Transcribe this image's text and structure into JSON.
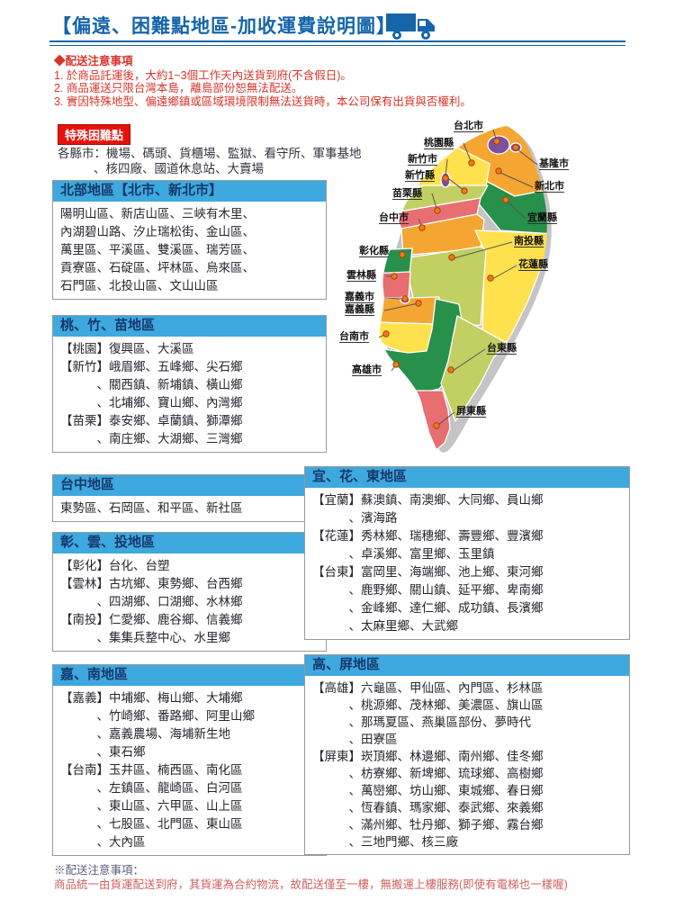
{
  "header": {
    "title": "【偏遠、困難點地區-加收運費說明圖】"
  },
  "notes": {
    "heading": "◆配送注意事項",
    "items": [
      "1. 於商品託運後，大約1~3個工作天內送貨到府(不含假日)。",
      "2. 商品運送只限台灣本島，離島部份恕無法配送。",
      "3. 實因特殊地型、偏遠鄉鎮或區域環境限制無法送貨時，本公司保有出貨與否權利。"
    ]
  },
  "special": {
    "badge": "特殊困難點",
    "line1": "各縣市：機場、碼頭、貨櫃場、監獄、看守所、軍事基地",
    "line2": "、核四廠、國道休息站、大賣場"
  },
  "boxes": [
    {
      "title": "北部地區【北市、新北市】",
      "lines": [
        "陽明山區、新店山區、三峽有木里、",
        "內湖碧山路、汐止瑞松街、金山區、",
        "萬里區、平溪區、雙溪區、瑞芳區、",
        "貢寮區、石碇區、坪林區、烏來區、",
        "石門區、北投山區、文山山區"
      ]
    },
    {
      "title": "桃、竹、苗地區",
      "lines": [
        "【桃園】復興區、大溪區",
        "【新竹】峨眉鄉、五峰鄉、尖石鄉",
        "　　　、關西鎮、新埔鎮、橫山鄉",
        "　　　、北埔鄉、寶山鄉、內灣鄉",
        "【苗栗】泰安鄉、卓蘭鎮、獅潭鄉",
        "　　　、南庄鄉、大湖鄉、三灣鄉"
      ]
    },
    {
      "title": "台中地區",
      "lines": [
        "東勢區、石岡區、和平區、新社區"
      ]
    },
    {
      "title": "彰、雲、投地區",
      "lines": [
        "【彰化】台化、台塑",
        "【雲林】古坑鄉、東勢鄉、台西鄉",
        "　　　、四湖鄉、口湖鄉、水林鄉",
        "【南投】仁愛鄉、鹿谷鄉、信義鄉",
        "　　　、集集兵整中心、水里鄉"
      ]
    },
    {
      "title": "嘉、南地區",
      "lines": [
        "【嘉義】中埔鄉、梅山鄉、大埔鄉",
        "　　　、竹崎鄉、番路鄉、阿里山鄉",
        "　　　、嘉義農場、海埔新生地",
        "　　　、東石鄉",
        "【台南】玉井區、楠西區、南化區",
        "　　　、左鎮區、龍崎區、白河區",
        "　　　、東山區、六甲區、山上區",
        "　　　、七股區、北門區、東山區",
        "　　　、大內區"
      ]
    },
    {
      "title": "宜、花、東地區",
      "lines": [
        "【宜蘭】蘇澳鎮、南澳鄉、大同鄉、員山鄉",
        "　　　、濱海路",
        "【花蓮】秀林鄉、瑞穗鄉、壽豐鄉、豐濱鄉",
        "　　　、卓溪鄉、富里鄉、玉里鎮",
        "【台東】富岡里、海端鄉、池上鄉、東河鄉",
        "　　　、鹿野鄉、關山鎮、延平鄉、卑南鄉",
        "　　　、金峰鄉、達仁鄉、成功鎮、長濱鄉",
        "　　　、太麻里鄉、大武鄉"
      ]
    },
    {
      "title": "高、屏地區",
      "lines": [
        "【高雄】六龜區、甲仙區、內門區、杉林區",
        "　　　、桃源鄉、茂林鄉、美濃區、旗山區",
        "　　　、那瑪夏區、燕巢區部份、夢時代",
        "　　　、田寮區",
        "【屏東】崁頂鄉、林邊鄉、南州鄉、佳冬鄉",
        "　　　、枋寮鄉、新埤鄉、琉球鄉、高樹鄉",
        "　　　、萬巒鄉、坊山鄉、東城鄉、春日鄉",
        "　　　、恆春鎮、瑪家鄉、泰武鄉、來義鄉",
        "　　　、滿州鄉、牡丹鄉、獅子鄉、霧台鄉",
        "　　　、三地門鄉、核三廠"
      ]
    }
  ],
  "map": {
    "labels": [
      "台北市",
      "桃園縣",
      "新竹市",
      "新竹縣",
      "苗栗縣",
      "台中市",
      "彰化縣",
      "雲林縣",
      "嘉義市",
      "嘉義縣",
      "台南市",
      "高雄市",
      "基隆市",
      "新北市",
      "宜蘭縣",
      "南投縣",
      "花蓮縣",
      "台東縣",
      "屏東縣"
    ]
  },
  "footer": {
    "heading": "※配送注意事項：",
    "line": "商品統一由貨運配送到府，其貨運為合約物流，故配送僅至一樓，無搬運上樓服務(即使有電梯也一樣喔)"
  },
  "colors": {
    "title_blue": "#1565A8",
    "box_header_bg": "#3EA9DE",
    "box_header_text": "#16386B",
    "badge_red": "#E8120C",
    "note_red": "#D9342B",
    "footer_purple": "#5C5C7D",
    "footer_red": "#D06060",
    "map_orange": "#F5A632",
    "map_yellow": "#FFE14D",
    "map_yellowgreen": "#C2CF63",
    "map_green": "#27904B",
    "map_rose": "#E86E72",
    "map_purple": "#7C4F9F",
    "map_coast_gray": "#C4C4C4",
    "dot_orange": "#F07820"
  }
}
